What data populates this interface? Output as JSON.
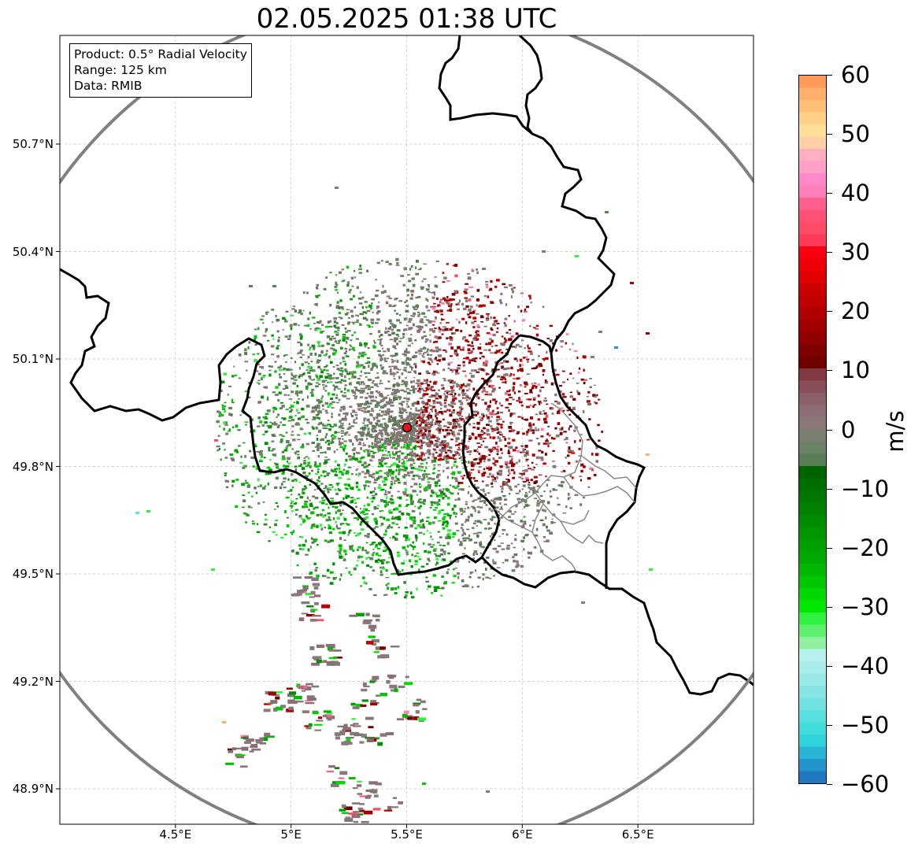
{
  "title": "02.05.2025 01:38 UTC",
  "info_box": {
    "product": "Product: 0.5° Radial Velocity",
    "range": "Range: 125 km",
    "data": "Data: RMIB"
  },
  "map_extent": {
    "lon": [
      4.0,
      7.0
    ],
    "lat": [
      48.8,
      51.1
    ]
  },
  "radar_site": {
    "lon": 5.505,
    "lat": 49.915,
    "range_km": 125
  },
  "lat_ticks": [
    {
      "value": 50.7,
      "label": "50.7°N"
    },
    {
      "value": 50.4,
      "label": "50.4°N"
    },
    {
      "value": 50.1,
      "label": "50.1°N"
    },
    {
      "value": 49.8,
      "label": "49.8°N"
    },
    {
      "value": 49.5,
      "label": "49.5°N"
    },
    {
      "value": 49.2,
      "label": "49.2°N"
    },
    {
      "value": 48.9,
      "label": "48.9°N"
    }
  ],
  "lon_ticks": [
    {
      "value": 4.5,
      "label": "4.5°E"
    },
    {
      "value": 5.0,
      "label": "5°E"
    },
    {
      "value": 5.5,
      "label": "5.5°E"
    },
    {
      "value": 6.0,
      "label": "6°E"
    },
    {
      "value": 6.5,
      "label": "6.5°E"
    }
  ],
  "colorbar": {
    "unit": "m/s",
    "min": -60,
    "max": 60,
    "ticks": [
      {
        "value": 60,
        "label": "60"
      },
      {
        "value": 50,
        "label": "50"
      },
      {
        "value": 40,
        "label": "40"
      },
      {
        "value": 30,
        "label": "30"
      },
      {
        "value": 20,
        "label": "20"
      },
      {
        "value": 10,
        "label": "10"
      },
      {
        "value": 0,
        "label": "0"
      },
      {
        "value": -10,
        "label": "−10"
      },
      {
        "value": -20,
        "label": "−20"
      },
      {
        "value": -30,
        "label": "−30"
      },
      {
        "value": -40,
        "label": "−40"
      },
      {
        "value": -50,
        "label": "−50"
      },
      {
        "value": -60,
        "label": "−60"
      }
    ],
    "colors_top_to_bottom": [
      "#ff9a5a",
      "#ffb06a",
      "#ffc07a",
      "#ffd088",
      "#ffe098",
      "#ffd0a8",
      "#ffb0c0",
      "#ffa0c8",
      "#ff88c8",
      "#ff80b8",
      "#ff6090",
      "#ff5078",
      "#ff4a68",
      "#ff3a58",
      "#f80010",
      "#ee0008",
      "#e00000",
      "#cc0000",
      "#c00000",
      "#b00000",
      "#a00000",
      "#900000",
      "#800000",
      "#700000",
      "#823a40",
      "#8a4e58",
      "#8c6068",
      "#8e6e78",
      "#8c7878",
      "#7a8070",
      "#6a8266",
      "#5a7e58",
      "#006400",
      "#006e00",
      "#007800",
      "#008200",
      "#008c00",
      "#009600",
      "#00a000",
      "#00aa00",
      "#00b800",
      "#00c800",
      "#00d800",
      "#00e800",
      "#30f040",
      "#60f070",
      "#90f0a0",
      "#b8f0f0",
      "#a8ecec",
      "#98e8e8",
      "#88e4e4",
      "#70e2e2",
      "#58e0e0",
      "#40dcdc",
      "#30d4dc",
      "#28b4d4",
      "#2494cc",
      "#2078c0"
    ]
  }
}
